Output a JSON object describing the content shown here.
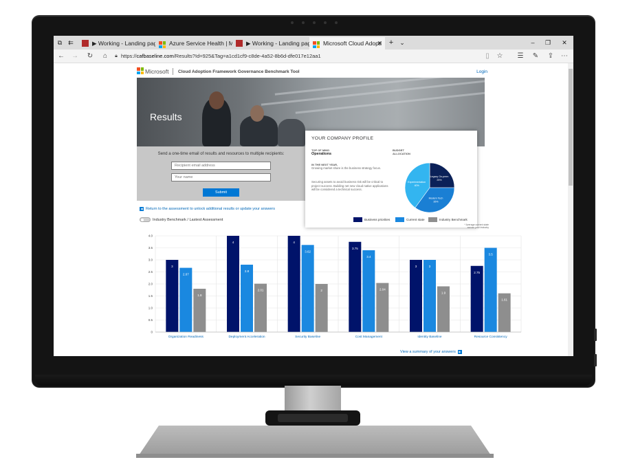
{
  "browser": {
    "tabs": [
      {
        "label": "▶ Working - Landing page"
      },
      {
        "label": "Azure Service Health | Micro"
      },
      {
        "label": "▶ Working - Landing page"
      },
      {
        "label": "Microsoft Cloud Adopti"
      }
    ],
    "url_prefix": "https://",
    "url_domain": "cafbaseline.com",
    "url_path": "/Results?Id=925&Tag=a1cd1cf9-c8de-4a52-8b6d-dfe017e12aa1"
  },
  "header": {
    "brand": "Microsoft",
    "tool_name": "Cloud Adoption Framework Governance Benchmark Tool",
    "login": "Login"
  },
  "hero": {
    "title": "Results"
  },
  "email": {
    "prompt": "Send a one-time email of results and resources to multiple recipients:",
    "recipient_placeholder": "Recipient email address",
    "name_placeholder": "Your name",
    "submit": "Submit"
  },
  "profile": {
    "title": "YOUR COMPANY PROFILE",
    "top_of_mind_label": "TOP OF MIND",
    "top_of_mind_value": "Operations",
    "next_year_label": "IN THE NEXT YEAR,",
    "next_year_text": "Growing market share is the business strategy focus.",
    "security_text": "Securing assets to avoid business risk will be critical to project success. Building net new cloud native applications will be considered a technical success.",
    "budget_label_1": "BUDGET",
    "budget_label_2": "ALLOCATION",
    "pie": [
      {
        "label": "Legacy On-prem",
        "pct": "25%",
        "value": 25,
        "color": "#0b2158"
      },
      {
        "label": "Modern Tech",
        "pct": "35%",
        "value": 35,
        "color": "#1a7fd4"
      },
      {
        "label": "Experimentation",
        "pct": "40%",
        "value": 40,
        "color": "#33b5f0"
      }
    ]
  },
  "links": {
    "return": "Return to the assessment to unlock additional results or update your answers",
    "toggle": "Industry Benchmark / Lastest Assessment",
    "summary": "View a summary of your answers"
  },
  "legend": {
    "business": "Business priorities",
    "current": "Current state",
    "industry": "Industry Benchmark",
    "note_1": "* Average current state",
    "note_2": "across your industry"
  },
  "colors": {
    "business": "#00136a",
    "current": "#1a88e0",
    "industry": "#8e8e8e"
  },
  "chart_data": {
    "type": "bar",
    "categories": [
      "Organization Readiness",
      "Deployment Acceleration",
      "Security Baseline",
      "Cost Management",
      "Identity Baseline",
      "Resource Consistency"
    ],
    "series": [
      {
        "name": "Business priorities",
        "values": [
          3,
          4,
          4,
          3.75,
          3,
          2.75
        ]
      },
      {
        "name": "Current state",
        "values": [
          2.67,
          2.8,
          3.62,
          3.4,
          3,
          3.5
        ]
      },
      {
        "name": "Industry Benchmark",
        "values": [
          1.8,
          2.01,
          2,
          2.04,
          1.9,
          1.61
        ]
      }
    ],
    "ylim": [
      0,
      4
    ],
    "yticks": [
      "0",
      "0.5",
      "1.0",
      "1.5",
      "2.0",
      "2.5",
      "3.0",
      "3.5",
      "4.0"
    ],
    "grid": true
  }
}
